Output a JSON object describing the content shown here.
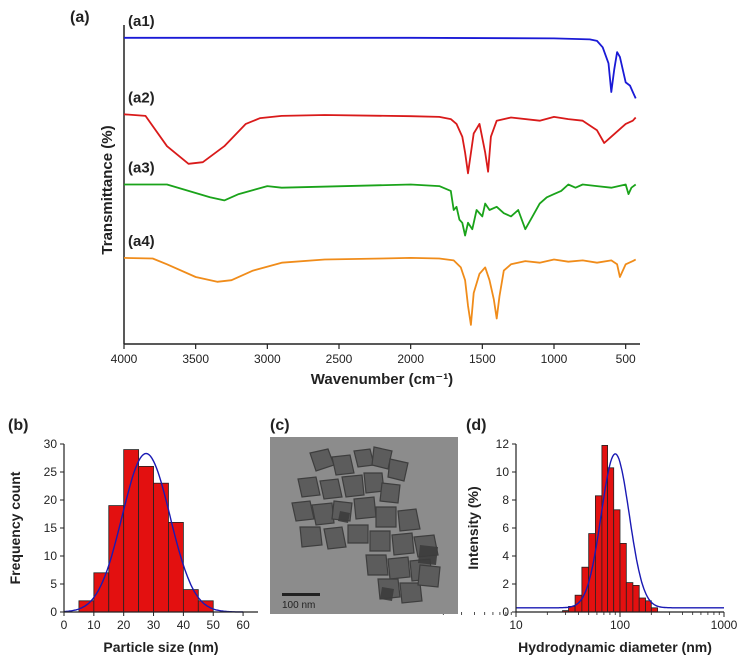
{
  "panels": {
    "a": "(a)",
    "b": "(b)",
    "c": "(c)",
    "d": "(d)"
  },
  "chart_data": [
    {
      "id": "a",
      "type": "line",
      "title": "",
      "xlabel": "Wavenumber (cm⁻¹)",
      "ylabel": "Transmittance (%)",
      "xlim": [
        4000,
        400
      ],
      "xticks": [
        4000,
        3500,
        3000,
        2500,
        2000,
        1500,
        1000,
        500
      ],
      "series": [
        {
          "name": "(a1)",
          "color": "#1a1ad6",
          "baseline": 0.96,
          "x": [
            4000,
            3000,
            2000,
            1000,
            750,
            700,
            660,
            620,
            600,
            580,
            560,
            540,
            520,
            500,
            470,
            450,
            430
          ],
          "y": [
            0.96,
            0.96,
            0.96,
            0.958,
            0.955,
            0.95,
            0.93,
            0.88,
            0.79,
            0.86,
            0.915,
            0.9,
            0.86,
            0.82,
            0.81,
            0.79,
            0.77
          ]
        },
        {
          "name": "(a2)",
          "color": "#d91a1a",
          "baseline": 0.72,
          "x": [
            4000,
            3850,
            3700,
            3550,
            3450,
            3300,
            3150,
            3050,
            2900,
            2600,
            2000,
            1800,
            1720,
            1680,
            1640,
            1620,
            1600,
            1560,
            1520,
            1480,
            1460,
            1440,
            1400,
            1300,
            1100,
            1000,
            900,
            800,
            700,
            650,
            600,
            550,
            500,
            450,
            430
          ],
          "y": [
            0.72,
            0.715,
            0.62,
            0.565,
            0.57,
            0.62,
            0.69,
            0.708,
            0.715,
            0.718,
            0.714,
            0.712,
            0.705,
            0.69,
            0.65,
            0.6,
            0.535,
            0.66,
            0.69,
            0.6,
            0.54,
            0.65,
            0.7,
            0.71,
            0.7,
            0.712,
            0.705,
            0.7,
            0.67,
            0.63,
            0.65,
            0.67,
            0.69,
            0.7,
            0.71
          ]
        },
        {
          "name": "(a3)",
          "color": "#1aa31a",
          "baseline": 0.5,
          "x": [
            4000,
            3700,
            3400,
            3300,
            3200,
            3000,
            2900,
            2000,
            1800,
            1720,
            1700,
            1680,
            1660,
            1640,
            1620,
            1600,
            1570,
            1540,
            1500,
            1480,
            1450,
            1400,
            1350,
            1300,
            1250,
            1200,
            1150,
            1100,
            1050,
            1000,
            950,
            900,
            850,
            800,
            700,
            600,
            500,
            480,
            460,
            430
          ],
          "y": [
            0.5,
            0.5,
            0.46,
            0.45,
            0.47,
            0.495,
            0.49,
            0.5,
            0.495,
            0.48,
            0.42,
            0.43,
            0.39,
            0.38,
            0.34,
            0.38,
            0.36,
            0.42,
            0.4,
            0.44,
            0.42,
            0.43,
            0.41,
            0.4,
            0.42,
            0.36,
            0.4,
            0.44,
            0.46,
            0.47,
            0.48,
            0.5,
            0.49,
            0.5,
            0.495,
            0.49,
            0.5,
            0.47,
            0.49,
            0.5
          ]
        },
        {
          "name": "(a4)",
          "color": "#f08c1a",
          "baseline": 0.27,
          "x": [
            4000,
            3800,
            3700,
            3500,
            3350,
            3250,
            3100,
            2900,
            2600,
            2200,
            2000,
            1800,
            1700,
            1650,
            1620,
            1600,
            1580,
            1560,
            1520,
            1480,
            1450,
            1420,
            1400,
            1380,
            1350,
            1300,
            1200,
            1100,
            1000,
            900,
            800,
            700,
            600,
            560,
            540,
            500,
            450,
            430
          ],
          "y": [
            0.27,
            0.268,
            0.25,
            0.21,
            0.195,
            0.2,
            0.23,
            0.255,
            0.265,
            0.268,
            0.27,
            0.268,
            0.262,
            0.24,
            0.2,
            0.12,
            0.06,
            0.16,
            0.22,
            0.24,
            0.2,
            0.14,
            0.08,
            0.15,
            0.23,
            0.25,
            0.26,
            0.255,
            0.265,
            0.258,
            0.262,
            0.255,
            0.262,
            0.25,
            0.21,
            0.25,
            0.26,
            0.265
          ]
        }
      ]
    },
    {
      "id": "b",
      "type": "bar",
      "xlabel": "Particle size (nm)",
      "ylabel": "Frequency count",
      "xlim": [
        0,
        65
      ],
      "ylim": [
        0,
        30
      ],
      "xticks": [
        0,
        10,
        20,
        30,
        40,
        50,
        60
      ],
      "yticks": [
        0,
        5,
        10,
        15,
        20,
        25,
        30
      ],
      "bins": [
        {
          "x0": 5,
          "x1": 10,
          "value": 2
        },
        {
          "x0": 10,
          "x1": 15,
          "value": 7
        },
        {
          "x0": 15,
          "x1": 20,
          "value": 19
        },
        {
          "x0": 20,
          "x1": 25,
          "value": 29
        },
        {
          "x0": 25,
          "x1": 30,
          "value": 26
        },
        {
          "x0": 30,
          "x1": 35,
          "value": 23
        },
        {
          "x0": 35,
          "x1": 40,
          "value": 16
        },
        {
          "x0": 40,
          "x1": 45,
          "value": 4
        },
        {
          "x0": 45,
          "x1": 50,
          "value": 2
        }
      ],
      "fit": {
        "type": "gaussian",
        "mean": 27.5,
        "sd": 8.0,
        "peak": 28.3
      },
      "bar_color": "#e31010",
      "fit_color": "#1a1ab4"
    },
    {
      "id": "d",
      "type": "bar",
      "xscale": "log",
      "xlabel": "Hydrodynamic diameter (nm)",
      "ylabel": "Intensity (%)",
      "xlim": [
        10,
        1000
      ],
      "ylim": [
        0,
        12
      ],
      "xticks": [
        10,
        100,
        1000
      ],
      "yticks": [
        0,
        2,
        4,
        6,
        8,
        10,
        12
      ],
      "bins": [
        {
          "x0": 28,
          "x1": 32,
          "value": 0.1
        },
        {
          "x0": 32,
          "x1": 37,
          "value": 0.4
        },
        {
          "x0": 37,
          "x1": 43,
          "value": 1.2
        },
        {
          "x0": 43,
          "x1": 50,
          "value": 3.2
        },
        {
          "x0": 50,
          "x1": 58,
          "value": 5.6
        },
        {
          "x0": 58,
          "x1": 67,
          "value": 8.3
        },
        {
          "x0": 67,
          "x1": 76,
          "value": 11.9
        },
        {
          "x0": 76,
          "x1": 87,
          "value": 10.3
        },
        {
          "x0": 87,
          "x1": 100,
          "value": 7.3
        },
        {
          "x0": 100,
          "x1": 115,
          "value": 4.9
        },
        {
          "x0": 115,
          "x1": 133,
          "value": 2.1
        },
        {
          "x0": 133,
          "x1": 153,
          "value": 1.9
        },
        {
          "x0": 153,
          "x1": 176,
          "value": 1.0
        },
        {
          "x0": 176,
          "x1": 200,
          "value": 0.8
        },
        {
          "x0": 200,
          "x1": 230,
          "value": 0.3
        }
      ],
      "fit": {
        "type": "lognormal",
        "median_nm": 90,
        "sigma_ln": 0.31,
        "peak": 11.3
      },
      "bar_color": "#e31010",
      "fit_color": "#1a1ab4"
    }
  ],
  "tem": {
    "scale_bar": "100 nm"
  }
}
